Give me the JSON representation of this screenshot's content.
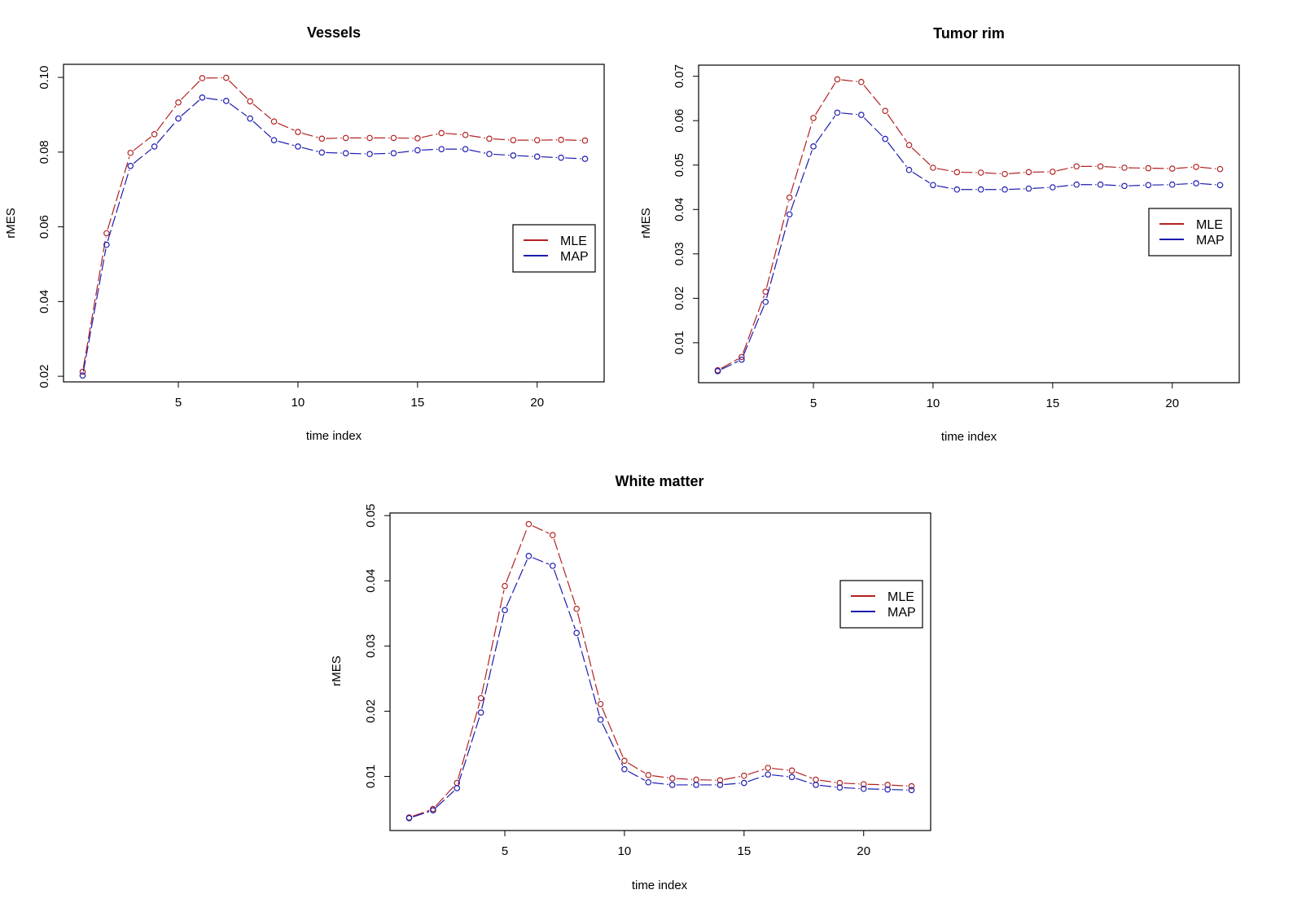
{
  "chart_data": [
    {
      "type": "line",
      "title": "Vessels",
      "xlabel": "time index",
      "ylabel": "rMES",
      "xlim": [
        0.2,
        22.8
      ],
      "ylim": [
        0.0185,
        0.1035
      ],
      "xticks": [
        5,
        10,
        15,
        20
      ],
      "yticks": [
        0.02,
        0.04,
        0.06,
        0.08,
        0.1
      ],
      "ytick_labels": [
        "0.02",
        "0.04",
        "0.06",
        "0.08",
        "0.10"
      ],
      "legend": {
        "position": "right",
        "entries": [
          "MLE",
          "MAP"
        ]
      },
      "x": [
        1,
        2,
        3,
        4,
        5,
        6,
        7,
        8,
        9,
        10,
        11,
        12,
        13,
        14,
        15,
        16,
        17,
        18,
        19,
        20,
        21,
        22
      ],
      "series": [
        {
          "name": "MLE",
          "color": "#B22222",
          "values": [
            0.0212,
            0.0583,
            0.0798,
            0.0848,
            0.0933,
            0.0998,
            0.0999,
            0.0936,
            0.0882,
            0.0854,
            0.0836,
            0.0838,
            0.0838,
            0.0838,
            0.0837,
            0.0851,
            0.0846,
            0.0836,
            0.0832,
            0.0832,
            0.0833,
            0.0831
          ]
        },
        {
          "name": "MAP",
          "color": "#1C1CB0",
          "values": [
            0.0202,
            0.0552,
            0.0763,
            0.0815,
            0.089,
            0.0946,
            0.0937,
            0.089,
            0.0832,
            0.0815,
            0.0799,
            0.0797,
            0.0795,
            0.0797,
            0.0805,
            0.0808,
            0.0808,
            0.0795,
            0.0791,
            0.0788,
            0.0785,
            0.0782
          ]
        }
      ]
    },
    {
      "type": "line",
      "title": "Tumor rim",
      "xlabel": "time index",
      "ylabel": "rMES",
      "xlim": [
        0.2,
        22.8
      ],
      "ylim": [
        0.001,
        0.0725
      ],
      "xticks": [
        5,
        10,
        15,
        20
      ],
      "yticks": [
        0.01,
        0.02,
        0.03,
        0.04,
        0.05,
        0.06,
        0.07
      ],
      "ytick_labels": [
        "0.01",
        "0.02",
        "0.03",
        "0.04",
        "0.05",
        "0.06",
        "0.07"
      ],
      "legend": {
        "position": "right",
        "entries": [
          "MLE",
          "MAP"
        ]
      },
      "x": [
        1,
        2,
        3,
        4,
        5,
        6,
        7,
        8,
        9,
        10,
        11,
        12,
        13,
        14,
        15,
        16,
        17,
        18,
        19,
        20,
        21,
        22
      ],
      "series": [
        {
          "name": "MLE",
          "color": "#B22222",
          "values": [
            0.0038,
            0.0068,
            0.0215,
            0.0427,
            0.0606,
            0.0693,
            0.0687,
            0.0622,
            0.0545,
            0.0494,
            0.0484,
            0.0483,
            0.048,
            0.0484,
            0.0485,
            0.0497,
            0.0497,
            0.0494,
            0.0493,
            0.0492,
            0.0496,
            0.0491
          ]
        },
        {
          "name": "MAP",
          "color": "#1C1CB0",
          "values": [
            0.0036,
            0.0062,
            0.0192,
            0.0389,
            0.0542,
            0.0618,
            0.0613,
            0.0559,
            0.0489,
            0.0455,
            0.0445,
            0.0445,
            0.0445,
            0.0447,
            0.045,
            0.0456,
            0.0456,
            0.0453,
            0.0455,
            0.0456,
            0.0459,
            0.0455
          ]
        }
      ]
    },
    {
      "type": "line",
      "title": "White matter",
      "xlabel": "time index",
      "ylabel": "rMES",
      "xlim": [
        0.2,
        22.8
      ],
      "ylim": [
        0.0017,
        0.0504
      ],
      "xticks": [
        5,
        10,
        15,
        20
      ],
      "yticks": [
        0.01,
        0.02,
        0.03,
        0.04,
        0.05
      ],
      "ytick_labels": [
        "0.01",
        "0.02",
        "0.03",
        "0.04",
        "0.05"
      ],
      "legend": {
        "position": "top-right",
        "entries": [
          "MLE",
          "MAP"
        ]
      },
      "x": [
        1,
        2,
        3,
        4,
        5,
        6,
        7,
        8,
        9,
        10,
        11,
        12,
        13,
        14,
        15,
        16,
        17,
        18,
        19,
        20,
        21,
        22
      ],
      "series": [
        {
          "name": "MLE",
          "color": "#B22222",
          "values": [
            0.0037,
            0.005,
            0.009,
            0.022,
            0.0392,
            0.0487,
            0.047,
            0.0357,
            0.0211,
            0.0124,
            0.0102,
            0.0097,
            0.0095,
            0.0094,
            0.0101,
            0.0113,
            0.0109,
            0.0095,
            0.009,
            0.0088,
            0.0087,
            0.0085
          ]
        },
        {
          "name": "MAP",
          "color": "#1C1CB0",
          "values": [
            0.0036,
            0.0048,
            0.0082,
            0.0198,
            0.0355,
            0.0438,
            0.0423,
            0.032,
            0.0187,
            0.0111,
            0.0091,
            0.0087,
            0.0087,
            0.0087,
            0.009,
            0.0103,
            0.0099,
            0.0087,
            0.0083,
            0.0081,
            0.008,
            0.0079
          ]
        }
      ]
    }
  ]
}
